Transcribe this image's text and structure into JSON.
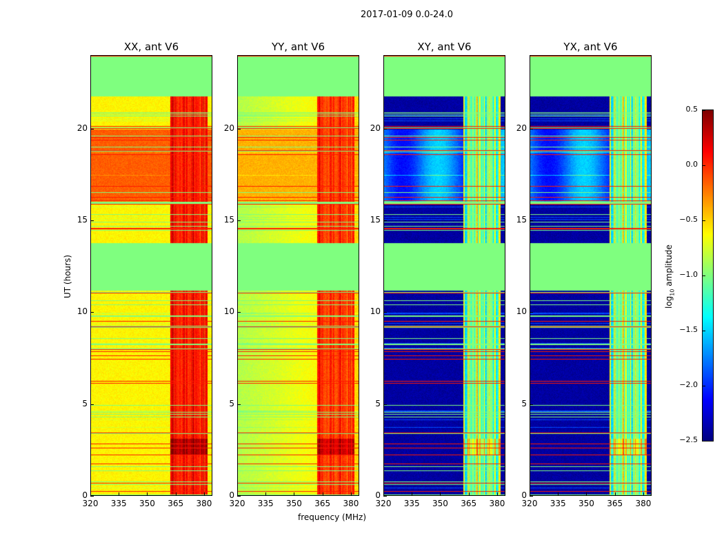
{
  "chart_data": {
    "type": "heatmap",
    "title": "2017-01-09 0.0-24.0",
    "xlabel": "frequency (MHz)",
    "ylabel": "UT (hours)",
    "xlim": [
      320,
      384.4
    ],
    "ylim": [
      0,
      24
    ],
    "xticks": [
      320,
      335,
      350,
      365,
      380
    ],
    "yticks": [
      0,
      5,
      10,
      15,
      20
    ],
    "panels": [
      {
        "title": "XX, ant V6",
        "kind": "parallel",
        "base": -0.6,
        "band_level": 0.1,
        "busy_level": -0.15
      },
      {
        "title": "YY, ant V6",
        "kind": "parallel",
        "base": -0.85,
        "band_level": 0.0,
        "busy_level": -0.4
      },
      {
        "title": "XY, ant V6",
        "kind": "cross",
        "base": -2.4,
        "band_level": -0.8,
        "busy_level": -1.8
      },
      {
        "title": "YX, ant V6",
        "kind": "cross",
        "base": -2.4,
        "band_level": -0.8,
        "busy_level": -1.8
      }
    ],
    "flagged_hours": [
      [
        11.2,
        13.8
      ],
      [
        21.8,
        24
      ]
    ],
    "busy_hours": [
      [
        16,
        20
      ]
    ],
    "bright_hours": [
      [
        2.2,
        3.1
      ]
    ],
    "rfi_band_mhz": [
      362,
      382
    ],
    "colorbar": {
      "label": "log10 amplitude",
      "label_main": "log",
      "label_sub": "10",
      "label_rest": " amplitude",
      "cmap": "jet",
      "vmin": -2.5,
      "vmax": 0.5,
      "ticks": [
        "0.5",
        "0.0",
        "−0.5",
        "−1.0",
        "−1.5",
        "−2.0",
        "−2.5"
      ]
    }
  }
}
